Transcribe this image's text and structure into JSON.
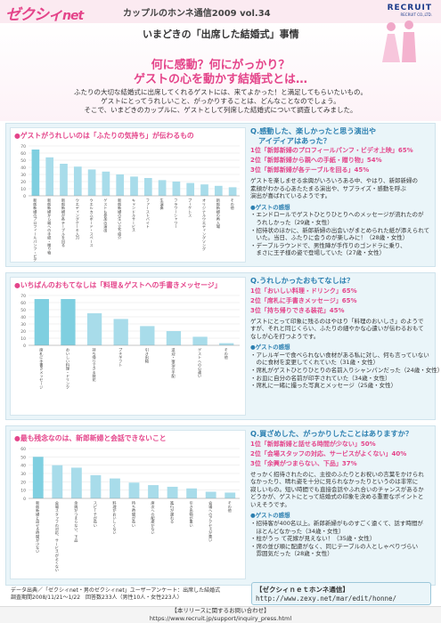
{
  "header": {
    "logo": "ゼクシィ",
    "logo_net": "net",
    "vol_title": "カップルのホンネ通信2009 vol.34",
    "company": "RECRUIT",
    "company_sub": "RECRUIT CO.,LTD.",
    "headline": "いまどきの「出席した結婚式」事情"
  },
  "hero": {
    "line1": "何に感動？何にがっかり？",
    "line2": "ゲストの心を動かす結婚式とは…"
  },
  "intro": [
    "ふたりの大切な結婚式に出席してくれるゲストには、来てよかった！と満足してもらいたいもの。",
    "ゲストにとってうれしいこと、がっかりすることは、どんなことなのでしょう。",
    "そこで、いまどきのカップルに、ゲストとして列席した結婚式について調査してみました。"
  ],
  "section1": {
    "chart_title": "ゲストがうれしいのは「ふたりの気持ち」が伝わるもの",
    "question": "Q.感動した、楽しかったと思う演出や",
    "question2": "アイディアはあった？",
    "ranks": [
      "1位「新郎新婦のプロフィールパンフ・ビデオ上映」65%",
      "2位「新郎新婦から親への手紙・贈り物」54%",
      "3位「新郎新婦が各テーブルを回る」45%"
    ],
    "body": [
      "ゲストを楽しませる余興がいろいろある中、やはり、新郎新婦の",
      "素顔がわかる心あたたまる演出や、サプライズ・感動を呼ぶ",
      "演出が喜ばれているようです。"
    ],
    "voice_head": "●ゲストの感想",
    "voices": [
      "・エンドロールでゲストひとりひとりへのメッセージが流れたのが",
      "　うれしかった（29歳・女性）",
      "・招待状のほかに、新郎新婦の出会いがまとめられた紙が添えられて",
      "　いた。当日、ふたりに会うのが楽しみに！（28歳・女性）",
      "・デーブルラウンドで、男性陣が手作りのゴンドラに乗り、",
      "　まさに王子様の姿で登場していた（27歳・女性）"
    ]
  },
  "section2": {
    "chart_title": "いちばんのおもてなしは「料理＆ゲストへの手書きメッセージ」",
    "question": "Q.うれしかったおもてなしは？",
    "ranks": [
      "1位「おいしい料理・ドリンク」65%",
      "2位「席札に手書きメッセージ」65%",
      "3位「持ち帰りできる装花」45%"
    ],
    "body": [
      "ゲストにとって印象に残るのはやはり「料理のおいしさ」のようで",
      "すが、それと同じくらい、ふたりの細やかな心遣いが伝わるおもて",
      "なしが心を打つようです。"
    ],
    "voice_head": "●ゲストの感想",
    "voices": [
      "・アレルギーで食べられない食材がある私に対し、何も言っていない",
      "　のに食材を変更してくれていた（31歳・女性）",
      "・席札がゲストひとりひとりの名前入りシャンパンだった（24歳・女性）",
      "・お皿に自分の名前が印字されていた（34歳・女性）",
      "・席札に一緒に撮った写真とメッセージ（25歳・女性）"
    ]
  },
  "section3": {
    "chart_title": "最も残念なのは、新郎新婦と会話できないこと",
    "question": "Q.買ざめした、がっかりしたことはありますか？",
    "ranks": [
      "1位「新郎新婦と話せる時間が少ない」50%",
      "2位「会場スタッフの対応、サービスがよくない」40%",
      "3位「余興がつまらない、下品」37%"
    ],
    "body": [
      "せっかく招待されたのに、主役のふたりとお祝いの言葉をかけられ",
      "なかったり、晴れ姿を十分に見られなかったりというのは非常に",
      "寂しいもの。短い時間でも直接会話やふれ合いのチャンスがあるか",
      "どうかが、ゲストにとって結婚式の印象を決める重要なポイントと",
      "いえそうです。"
    ],
    "voice_head": "●ゲストの感想",
    "voices": [
      "・招待客が400名以上。新郎新婦がものすごく遠くて、話す時間が",
      "　ほとんどなかった（34歳・女性）",
      "・柱がうっ て花嫁が見えない！（35歳・女性）",
      "・席の並び順に配慮がなく、同じテーブルの人としゃべりづらい",
      "　雰囲気だった（28歳・女性）"
    ]
  },
  "source": {
    "line1": "データ出典／「ゼクシィnet・男のゼクシィnet」ユーザーアンケート：出席した結婚式",
    "line2": "調査期間2008/11/21〜1/22　回答数233人（男性10人・女性223人）"
  },
  "url_box": {
    "label": "【ゼクシィｎｅｔホンネ通信】",
    "url": "http://www.zexy.net/mar/edit/honne/"
  },
  "footer": {
    "line1": "【本リリースに関するお問い合わせ】",
    "line2": "https://www.recruit.jp/support/inquiry_press.html"
  },
  "chart_data": [
    {
      "type": "bar",
      "title": "ゲストがうれしいのは「ふたりの気持ち」が伝わるもの",
      "ylim": [
        0,
        70
      ],
      "yticks": [
        0,
        10,
        20,
        30,
        40,
        50,
        60,
        70
      ],
      "highlight_index": 0,
      "categories": [
        "新郎新婦のプロフィールパンフ・ビデオ上映",
        "新郎新婦から親への手紙・贈り物",
        "新郎新婦が各テーブルを回る",
        "ウエディングケーキ入刀",
        "ウエルカムボード・スペース",
        "ゲストも参加の演出",
        "新郎新婦の生い立ち紹介",
        "キャンドルサービス",
        "ファーストバイト",
        "生演奏",
        "フラワーシャワー",
        "ブーケトス",
        "オリジナルウエディングソング",
        "新郎新婦の再入場",
        "その他"
      ],
      "values": [
        65,
        54,
        45,
        41,
        37,
        34,
        30,
        27,
        25,
        22,
        20,
        18,
        16,
        14,
        12
      ]
    },
    {
      "type": "bar",
      "title": "いちばんのおもてなしは「料理＆ゲストへの手書きメッセージ」",
      "ylim": [
        0,
        70
      ],
      "yticks": [
        0,
        10,
        20,
        30,
        40,
        50,
        60,
        70
      ],
      "highlight_index": 0,
      "categories": [
        "席札に手書きメッセージ",
        "おいしい料理・ドリンク",
        "持ち帰りできる装花",
        "プチギフト",
        "引き出物",
        "送迎・宿泊の手配",
        "ゲストへの心遣い",
        "その他"
      ],
      "values": [
        65,
        65,
        45,
        37,
        27,
        20,
        12,
        3
      ]
    },
    {
      "type": "bar",
      "title": "最も残念なのは、新郎新婦と会話できないこと",
      "ylim": [
        0,
        60
      ],
      "yticks": [
        0,
        10,
        20,
        30,
        40,
        50,
        60
      ],
      "highlight_index": 0,
      "categories": [
        "新郎新婦と話せる時間が少ない",
        "会場スタッフの対応、サービスがよくない",
        "余興がつまらない、下品",
        "スピーチが長い",
        "料理がおいしくない",
        "待ち時間が長い",
        "席次への配慮がない",
        "進行が遅れる",
        "引き出物が重い",
        "会場へのアクセスが悪い",
        "その他"
      ],
      "values": [
        50,
        40,
        37,
        28,
        24,
        19,
        16,
        14,
        12,
        8,
        7
      ]
    }
  ]
}
